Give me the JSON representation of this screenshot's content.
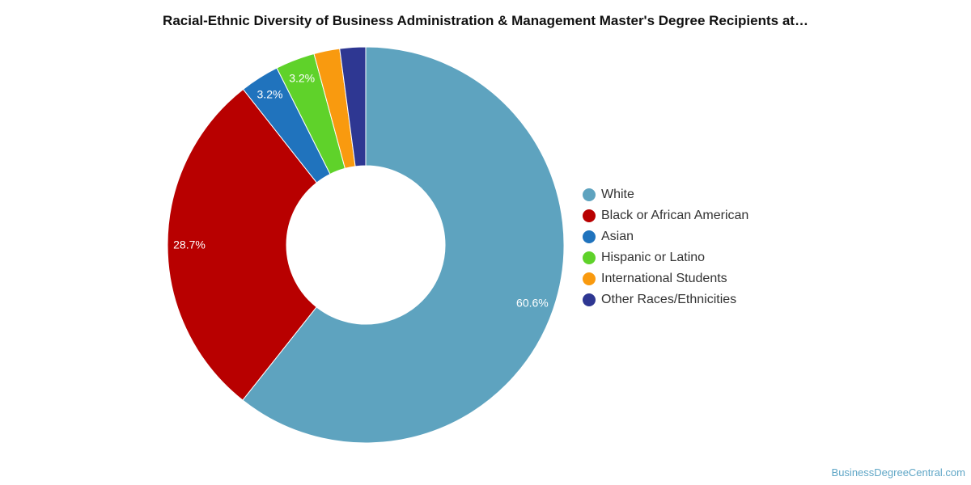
{
  "chart_data": {
    "type": "pie",
    "title": "Racial-Ethnic Diversity of Business Administration & Management Master's Degree Recipients at…",
    "donut": true,
    "legend_position": "right",
    "slices": [
      {
        "name": "White",
        "value": 60.6,
        "label": "60.6%",
        "color": "#5ea3bf"
      },
      {
        "name": "Black or African American",
        "value": 28.7,
        "label": "28.7%",
        "color": "#b80000"
      },
      {
        "name": "Asian",
        "value": 3.2,
        "label": "3.2%",
        "color": "#2073bd"
      },
      {
        "name": "Hispanic or Latino",
        "value": 3.2,
        "label": "3.2%",
        "color": "#5fd22a"
      },
      {
        "name": "International Students",
        "value": 2.1,
        "label": "",
        "color": "#f99a0f"
      },
      {
        "name": "Other Races/Ethnicities",
        "value": 2.1,
        "label": "",
        "color": "#2e3792"
      }
    ]
  },
  "footer": {
    "credit": "BusinessDegreeCentral.com"
  }
}
